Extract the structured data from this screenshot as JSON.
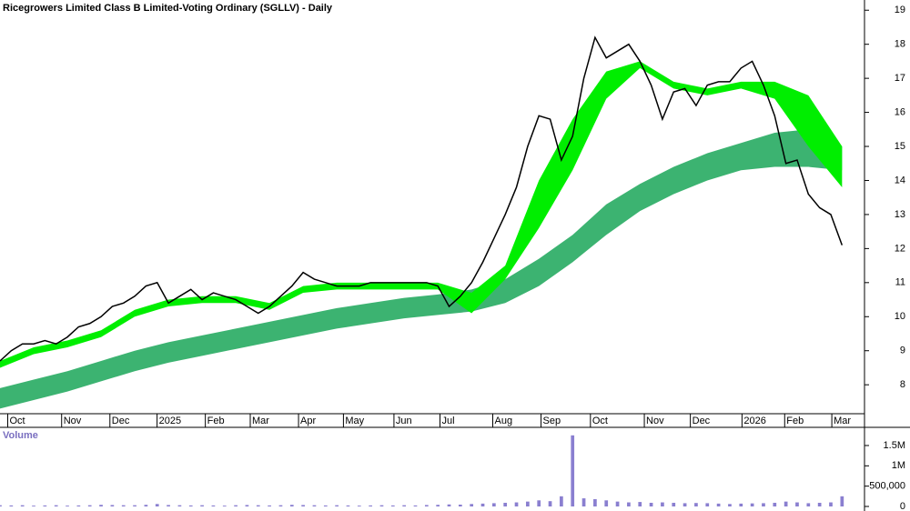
{
  "chart_data": [
    {
      "type": "line",
      "title": "Ricegrowers Limited Class B Limited-Voting Ordinary (SGLLV) - Daily",
      "color": "#000000",
      "xlim": [
        0,
        77
      ],
      "xticks": [
        {
          "value": 1.5,
          "label": "Oct"
        },
        {
          "value": 6.3,
          "label": "Nov"
        },
        {
          "value": 10.6,
          "label": "Dec"
        },
        {
          "value": 14.8,
          "label": "2025"
        },
        {
          "value": 19.1,
          "label": "Feb"
        },
        {
          "value": 23.1,
          "label": "Mar"
        },
        {
          "value": 27.4,
          "label": "Apr"
        },
        {
          "value": 31.4,
          "label": "May"
        },
        {
          "value": 35.9,
          "label": "Jun"
        },
        {
          "value": 40,
          "label": "Jul"
        },
        {
          "value": 44.7,
          "label": "Aug"
        },
        {
          "value": 49,
          "label": "Sep"
        },
        {
          "value": 53.4,
          "label": "Oct"
        },
        {
          "value": 58.2,
          "label": "Nov"
        },
        {
          "value": 62.3,
          "label": "Dec"
        },
        {
          "value": 66.9,
          "label": "2026"
        },
        {
          "value": 70.7,
          "label": "Feb"
        },
        {
          "value": 74.9,
          "label": "Mar"
        }
      ],
      "ylim": [
        7.15,
        19.3
      ],
      "yticks": [
        8,
        9,
        10,
        11,
        12,
        13,
        14,
        15,
        16,
        17,
        18,
        19
      ],
      "values": [
        8.7,
        9.0,
        9.2,
        9.2,
        9.3,
        9.2,
        9.4,
        9.7,
        9.8,
        10.0,
        10.3,
        10.4,
        10.6,
        10.9,
        11.0,
        10.4,
        10.6,
        10.8,
        10.5,
        10.7,
        10.6,
        10.5,
        10.3,
        10.1,
        10.3,
        10.6,
        10.9,
        11.3,
        11.1,
        11.0,
        10.9,
        10.9,
        10.9,
        11.0,
        11.0,
        11.0,
        11.0,
        11.0,
        11.0,
        10.9,
        10.3,
        10.6,
        11.0,
        11.6,
        12.3,
        13.0,
        13.8,
        15.0,
        15.9,
        15.8,
        14.6,
        15.3,
        17.0,
        18.2,
        17.6,
        17.8,
        18.0,
        17.5,
        16.8,
        15.8,
        16.6,
        16.7,
        16.2,
        16.8,
        16.9,
        16.9,
        17.3,
        17.5,
        16.8,
        15.9,
        14.5,
        14.6,
        13.6,
        13.2,
        13.0,
        12.1
      ],
      "bands": [
        {
          "color": "#3cb371",
          "x": [
            0,
            3,
            6,
            9,
            12,
            15,
            18,
            21,
            24,
            27,
            30,
            33,
            36,
            39,
            42,
            45,
            48,
            51,
            54,
            57,
            60,
            63,
            66,
            69,
            72,
            75
          ],
          "upper": [
            7.9,
            8.15,
            8.4,
            8.7,
            9.0,
            9.25,
            9.45,
            9.65,
            9.85,
            10.05,
            10.25,
            10.4,
            10.55,
            10.65,
            10.8,
            11.1,
            11.7,
            12.4,
            13.3,
            13.9,
            14.4,
            14.8,
            15.1,
            15.4,
            15.5,
            15.0
          ],
          "lower": [
            7.3,
            7.55,
            7.8,
            8.1,
            8.4,
            8.65,
            8.85,
            9.05,
            9.25,
            9.45,
            9.65,
            9.8,
            9.95,
            10.05,
            10.15,
            10.4,
            10.9,
            11.6,
            12.4,
            13.1,
            13.6,
            14.0,
            14.3,
            14.4,
            14.4,
            14.3
          ]
        },
        {
          "color": "#00ee00",
          "x": [
            0,
            3,
            6,
            9,
            12,
            15,
            18,
            21,
            24,
            27,
            30,
            33,
            36,
            39,
            42,
            45,
            48,
            51,
            54,
            57,
            60,
            63,
            66,
            69,
            72,
            75
          ],
          "upper": [
            8.7,
            9.1,
            9.3,
            9.6,
            10.2,
            10.5,
            10.6,
            10.6,
            10.4,
            10.9,
            11.0,
            11.0,
            11.0,
            11.0,
            10.7,
            11.5,
            14.0,
            15.8,
            17.2,
            17.5,
            16.9,
            16.7,
            16.9,
            16.9,
            16.5,
            15.0
          ],
          "lower": [
            8.5,
            8.9,
            9.1,
            9.4,
            10.0,
            10.3,
            10.4,
            10.4,
            10.2,
            10.7,
            10.8,
            10.8,
            10.8,
            10.8,
            10.1,
            11.1,
            12.6,
            14.3,
            16.4,
            17.3,
            16.7,
            16.5,
            16.7,
            16.4,
            15.0,
            13.8
          ]
        }
      ]
    },
    {
      "type": "bar",
      "title": "Volume",
      "color": "#8a7fd0",
      "ylim": [
        0,
        1880000
      ],
      "yticks": [
        0,
        {
          "value": 500000,
          "label": "500,000"
        },
        {
          "value": 1000000,
          "label": "1M"
        },
        {
          "value": 1500000,
          "label": "1.5M"
        }
      ],
      "values": [
        30000,
        25000,
        30000,
        20000,
        25000,
        30000,
        20000,
        25000,
        30000,
        40000,
        35000,
        30000,
        30000,
        40000,
        60000,
        35000,
        30000,
        25000,
        30000,
        25000,
        20000,
        30000,
        35000,
        30000,
        25000,
        30000,
        40000,
        35000,
        30000,
        25000,
        30000,
        25000,
        20000,
        25000,
        30000,
        25000,
        30000,
        25000,
        35000,
        40000,
        50000,
        45000,
        60000,
        70000,
        80000,
        90000,
        100000,
        120000,
        150000,
        130000,
        250000,
        1750000,
        200000,
        180000,
        150000,
        120000,
        100000,
        110000,
        90000,
        100000,
        90000,
        80000,
        85000,
        80000,
        70000,
        60000,
        70000,
        75000,
        80000,
        90000,
        120000,
        100000,
        80000,
        90000,
        100000,
        250000
      ]
    }
  ]
}
